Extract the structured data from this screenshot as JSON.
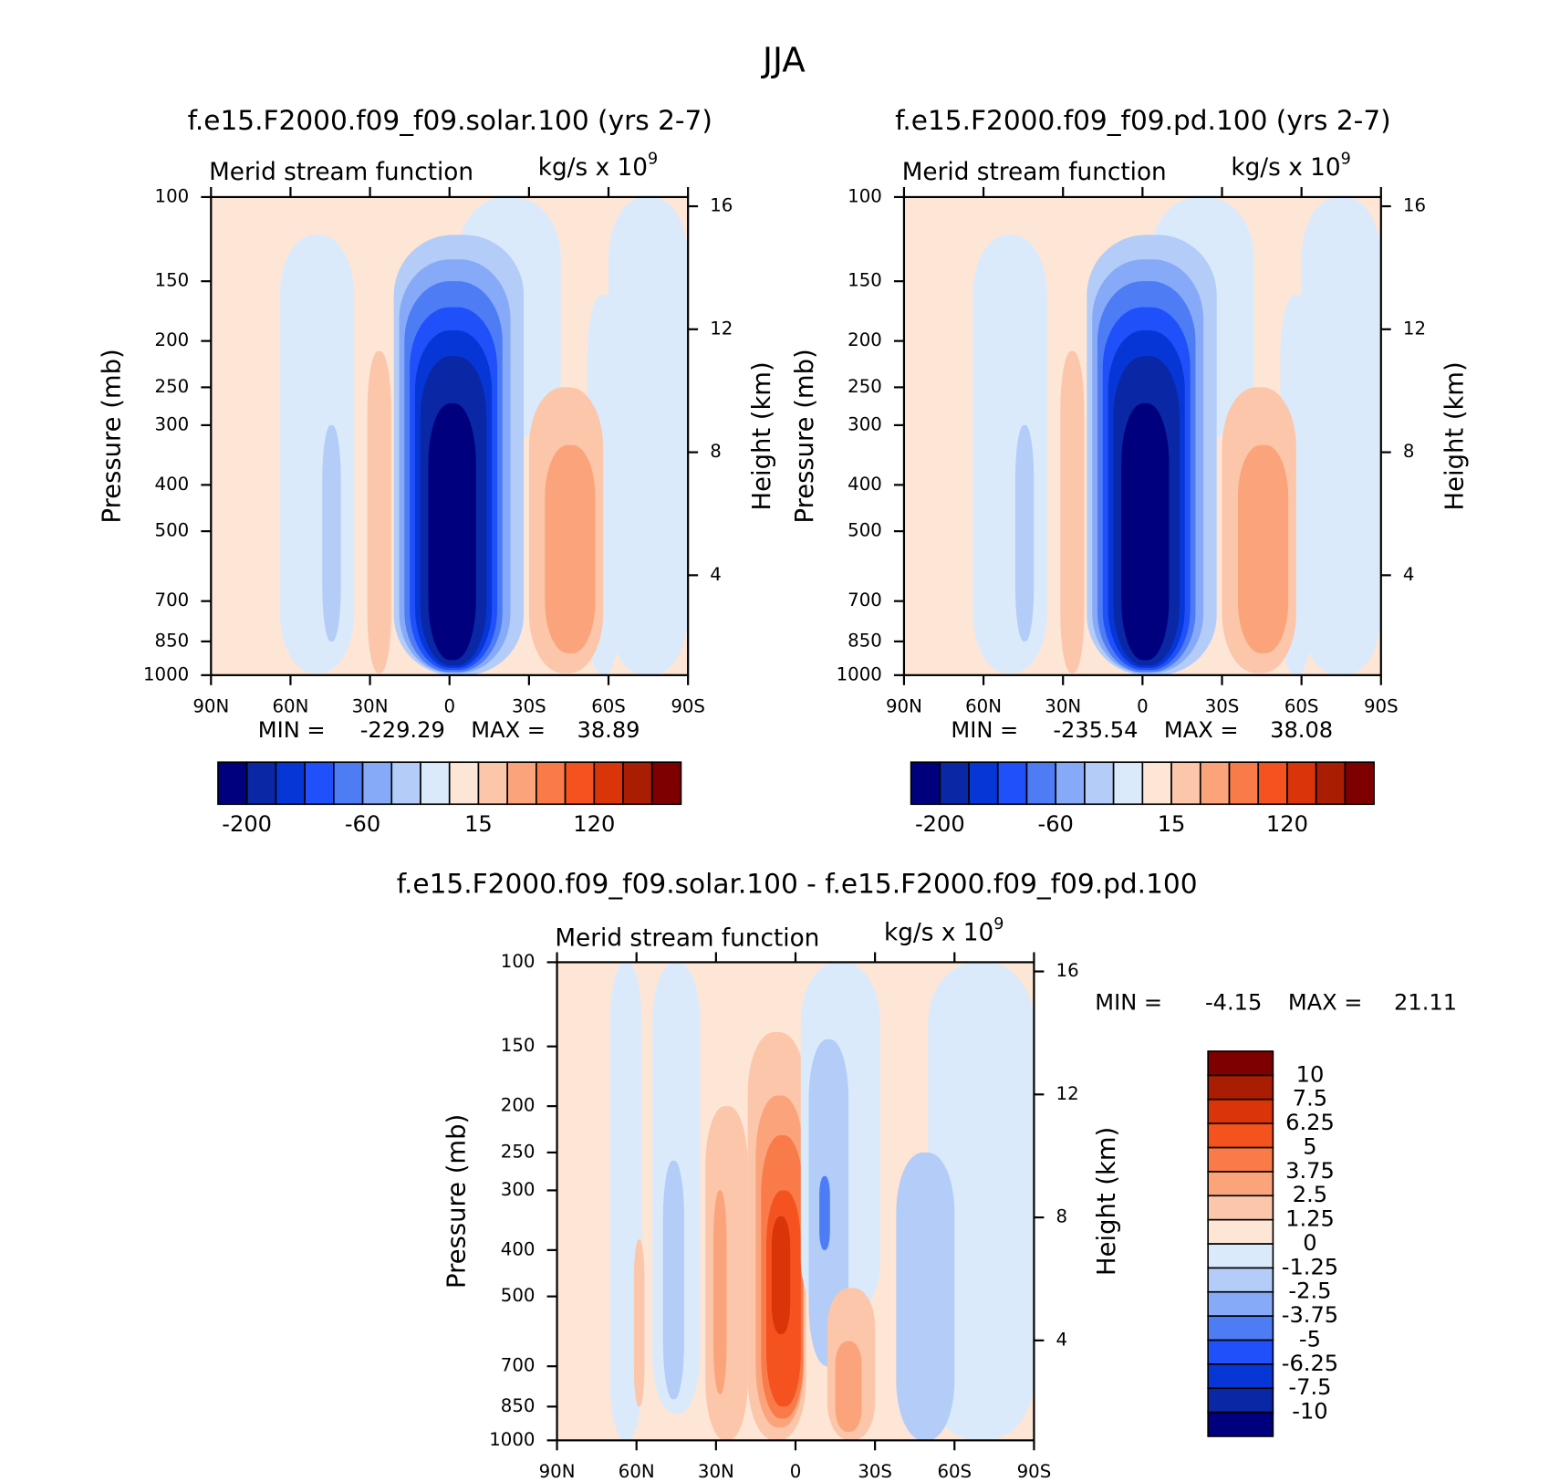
{
  "title": "JJA",
  "chart_data": [
    {
      "type": "contour",
      "title": "f.e15.F2000.f09_f09.solar.100 (yrs 2-7)",
      "subtitle": "Merid stream function",
      "units": "kg/s x 10",
      "units_exp": "9",
      "ylabel": "Pressure (mb)",
      "y2label": "Height (km)",
      "ylim": [
        1000,
        100
      ],
      "log_y": true,
      "yticks": [
        100,
        150,
        200,
        250,
        300,
        400,
        500,
        700,
        850,
        1000
      ],
      "y2lim": [
        0.75,
        16.3
      ],
      "y2ticks": [
        4,
        8,
        12,
        16
      ],
      "xlim": [
        90,
        -90
      ],
      "xticks": [
        {
          "value": 90,
          "label": "90N"
        },
        {
          "value": 60,
          "label": "60N"
        },
        {
          "value": 30,
          "label": "30N"
        },
        0,
        {
          "value": -30,
          "label": "30S"
        },
        {
          "value": -60,
          "label": "60S"
        },
        {
          "value": -90,
          "label": "90S"
        }
      ],
      "min_label": "MIN =",
      "min": -229.29,
      "max_label": "MAX =",
      "max": 38.89,
      "colorbar": {
        "orientation": "horizontal",
        "colors": [
          "#00007e",
          "#0a28a6",
          "#0637d6",
          "#1f50fa",
          "#4d7cf5",
          "#86aaf7",
          "#b3ccf8",
          "#dbeafb",
          "#fde6d6",
          "#fcc6aa",
          "#fba47c",
          "#f97b4a",
          "#f4521f",
          "#d93509",
          "#a91d02",
          "#7e0000"
        ],
        "levels": [
          -200,
          null,
          null,
          null,
          -60,
          null,
          null,
          null,
          15,
          null,
          null,
          null,
          120,
          null,
          null
        ]
      }
    },
    {
      "type": "contour",
      "title": "f.e15.F2000.f09_f09.pd.100 (yrs 2-7)",
      "subtitle": "Merid stream function",
      "units": "kg/s x 10",
      "units_exp": "9",
      "ylabel": "Pressure (mb)",
      "y2label": "Height (km)",
      "ylim": [
        1000,
        100
      ],
      "log_y": true,
      "yticks": [
        100,
        150,
        200,
        250,
        300,
        400,
        500,
        700,
        850,
        1000
      ],
      "y2lim": [
        0.75,
        16.3
      ],
      "y2ticks": [
        4,
        8,
        12,
        16
      ],
      "xlim": [
        90,
        -90
      ],
      "xticks": [
        {
          "value": 90,
          "label": "90N"
        },
        {
          "value": 60,
          "label": "60N"
        },
        {
          "value": 30,
          "label": "30N"
        },
        0,
        {
          "value": -30,
          "label": "30S"
        },
        {
          "value": -60,
          "label": "60S"
        },
        {
          "value": -90,
          "label": "90S"
        }
      ],
      "min_label": "MIN =",
      "min": -235.54,
      "max_label": "MAX =",
      "max": 38.08,
      "colorbar": {
        "orientation": "horizontal",
        "colors": [
          "#00007e",
          "#0a28a6",
          "#0637d6",
          "#1f50fa",
          "#4d7cf5",
          "#86aaf7",
          "#b3ccf8",
          "#dbeafb",
          "#fde6d6",
          "#fcc6aa",
          "#fba47c",
          "#f97b4a",
          "#f4521f",
          "#d93509",
          "#a91d02",
          "#7e0000"
        ],
        "levels": [
          -200,
          null,
          null,
          null,
          -60,
          null,
          null,
          null,
          15,
          null,
          null,
          null,
          120,
          null,
          null
        ]
      }
    },
    {
      "type": "contour",
      "title": "f.e15.F2000.f09_f09.solar.100 - f.e15.F2000.f09_f09.pd.100",
      "subtitle": "Merid stream function",
      "units": "kg/s x 10",
      "units_exp": "9",
      "ylabel": "Pressure (mb)",
      "y2label": "Height (km)",
      "ylim": [
        1000,
        100
      ],
      "log_y": true,
      "yticks": [
        100,
        150,
        200,
        250,
        300,
        400,
        500,
        700,
        850,
        1000
      ],
      "y2lim": [
        0.75,
        16.3
      ],
      "y2ticks": [
        4,
        8,
        12,
        16
      ],
      "xlim": [
        90,
        -90
      ],
      "xticks": [
        {
          "value": 90,
          "label": "90N"
        },
        {
          "value": 60,
          "label": "60N"
        },
        {
          "value": 30,
          "label": "30N"
        },
        0,
        {
          "value": -30,
          "label": "30S"
        },
        {
          "value": -60,
          "label": "60S"
        },
        {
          "value": -90,
          "label": "90S"
        }
      ],
      "min_label": "MIN =",
      "min": -4.15,
      "max_label": "MAX =",
      "max": 21.11,
      "colorbar": {
        "orientation": "vertical",
        "colors": [
          "#00007e",
          "#0a28a6",
          "#0637d6",
          "#1f50fa",
          "#4d7cf5",
          "#86aaf7",
          "#b3ccf8",
          "#dbeafb",
          "#fde6d6",
          "#fcc6aa",
          "#fba47c",
          "#f97b4a",
          "#f4521f",
          "#d93509",
          "#a91d02",
          "#7e0000"
        ],
        "levels": [
          -10,
          -7.5,
          -6.25,
          -5,
          -3.75,
          -2.5,
          -1.25,
          0,
          1.25,
          2.5,
          3.75,
          5,
          6.25,
          7.5,
          10
        ]
      }
    }
  ]
}
